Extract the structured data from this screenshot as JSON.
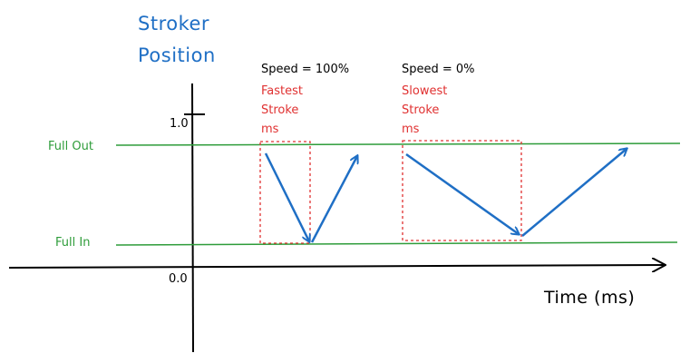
{
  "title": {
    "line1": "Stroker",
    "line2": "Position"
  },
  "x_axis_label": "Time (ms)",
  "y_ticks": {
    "top": "1.0",
    "origin": "0.0"
  },
  "levels": {
    "full_out": "Full Out",
    "full_in": "Full In"
  },
  "fast": {
    "speed": "Speed = 100%",
    "line1": "Fastest",
    "line2": "Stroke",
    "line3": "ms"
  },
  "slow": {
    "speed": "Speed = 0%",
    "line1": "Slowest",
    "line2": "Stroke",
    "line3": "ms"
  },
  "colors": {
    "title": "#1f6fc5",
    "arrows": "#1f6fc5",
    "level_lines": "#2e9c3a",
    "highlight": "#e03131",
    "axes": "#000000"
  }
}
